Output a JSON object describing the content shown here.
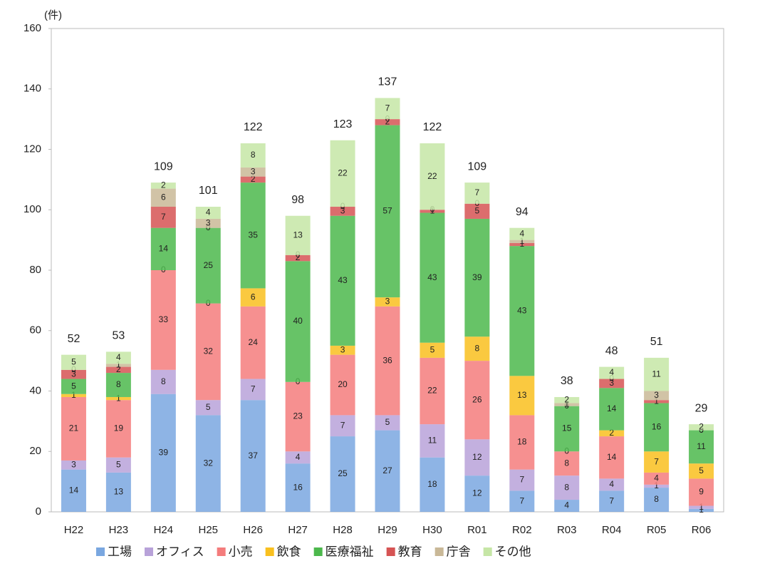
{
  "chart_data": {
    "type": "stacked_bar",
    "y_label": "(件)",
    "categories": [
      "H22",
      "H23",
      "H24",
      "H25",
      "H26",
      "H27",
      "H28",
      "H29",
      "H30",
      "R01",
      "R02",
      "R03",
      "R04",
      "R05",
      "R06"
    ],
    "series": [
      {
        "name": "工場",
        "color": "#7aa7e0",
        "values": [
          14,
          13,
          39,
          32,
          37,
          16,
          25,
          27,
          18,
          12,
          7,
          4,
          7,
          8,
          1
        ]
      },
      {
        "name": "オフィス",
        "color": "#b8a2d9",
        "values": [
          3,
          5,
          8,
          5,
          7,
          4,
          7,
          5,
          11,
          12,
          7,
          8,
          4,
          1,
          1
        ]
      },
      {
        "name": "小売",
        "color": "#f47c7c",
        "values": [
          21,
          19,
          33,
          32,
          24,
          23,
          20,
          36,
          22,
          26,
          18,
          8,
          14,
          4,
          9
        ]
      },
      {
        "name": "飲食",
        "color": "#f9c01f",
        "values": [
          1,
          1,
          0,
          0,
          6,
          0,
          3,
          3,
          5,
          8,
          13,
          0,
          2,
          7,
          5
        ]
      },
      {
        "name": "医療福祉",
        "color": "#4cb84c",
        "values": [
          5,
          8,
          14,
          25,
          35,
          40,
          43,
          57,
          43,
          39,
          43,
          15,
          14,
          16,
          11
        ]
      },
      {
        "name": "教育",
        "color": "#d65454",
        "values": [
          3,
          2,
          7,
          0,
          2,
          2,
          3,
          2,
          1,
          5,
          1,
          0,
          3,
          1,
          0
        ]
      },
      {
        "name": "庁舎",
        "color": "#c9b897",
        "values": [
          0,
          1,
          6,
          3,
          3,
          0,
          0,
          0,
          0,
          0,
          1,
          1,
          0,
          3,
          0
        ]
      },
      {
        "name": "その他",
        "color": "#c6e6a6",
        "values": [
          5,
          4,
          2,
          4,
          8,
          13,
          22,
          7,
          22,
          7,
          4,
          2,
          4,
          11,
          2
        ]
      }
    ],
    "totals": [
      52,
      53,
      109,
      101,
      122,
      98,
      123,
      137,
      122,
      109,
      94,
      38,
      48,
      51,
      29
    ],
    "ylim": [
      0,
      160
    ],
    "yticks": [
      0,
      20,
      40,
      60,
      80,
      100,
      120,
      140,
      160
    ],
    "grid": false
  }
}
